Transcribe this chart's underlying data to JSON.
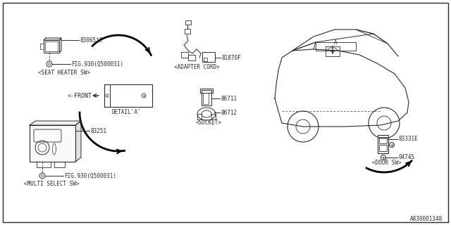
{
  "bg_color": "#ffffff",
  "line_color": "#2a2a2a",
  "text_color": "#2a2a2a",
  "ref_number": "A830001348",
  "detail_label": "DETAIL'A'",
  "front_label": "<-FRONT"
}
